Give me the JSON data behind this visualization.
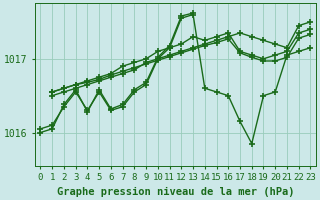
{
  "title": "Graphe pression niveau de la mer (hPa)",
  "bg_color": "#cce8e8",
  "grid_color": "#99ccbb",
  "line_color": "#1a6b1a",
  "ylim": [
    1015.55,
    1017.75
  ],
  "xlim": [
    -0.5,
    23.5
  ],
  "yticks": [
    1016,
    1017
  ],
  "xticks": [
    0,
    1,
    2,
    3,
    4,
    5,
    6,
    7,
    8,
    9,
    10,
    11,
    12,
    13,
    14,
    15,
    16,
    17,
    18,
    19,
    20,
    21,
    22,
    23
  ],
  "series": [
    {
      "x": [
        0,
        1,
        2,
        3,
        4,
        5,
        6,
        7,
        8,
        9,
        10,
        11,
        12,
        13,
        14,
        15,
        16,
        17,
        18,
        19,
        20,
        21,
        22,
        23
      ],
      "y": [
        1016.05,
        1016.1,
        1016.35,
        1016.55,
        1016.3,
        1016.55,
        1016.3,
        1016.35,
        1016.55,
        1016.65,
        1017.0,
        1017.15,
        1017.55,
        1017.6,
        1016.6,
        1016.55,
        1016.5,
        1016.15,
        1015.85,
        1016.5,
        1016.55,
        1017.05,
        1017.1,
        1017.15
      ]
    },
    {
      "x": [
        1,
        2,
        3,
        4,
        5,
        6,
        7,
        8,
        9,
        10,
        11,
        12,
        13,
        14,
        15,
        16,
        17,
        18,
        19,
        20,
        21,
        22,
        23
      ],
      "y": [
        1016.5,
        1016.55,
        1016.6,
        1016.65,
        1016.7,
        1016.75,
        1016.8,
        1016.85,
        1016.95,
        1017.0,
        1017.05,
        1017.1,
        1017.15,
        1017.2,
        1017.25,
        1017.3,
        1017.35,
        1017.3,
        1017.25,
        1017.2,
        1017.15,
        1017.45,
        1017.5
      ]
    },
    {
      "x": [
        1,
        2,
        3,
        4,
        5,
        6,
        7,
        8,
        9,
        10,
        11,
        12,
        13,
        14,
        15,
        16,
        17,
        18,
        19,
        20,
        21,
        22,
        23
      ],
      "y": [
        1016.55,
        1016.6,
        1016.65,
        1016.7,
        1016.75,
        1016.8,
        1016.9,
        1016.95,
        1017.0,
        1017.1,
        1017.15,
        1017.2,
        1017.3,
        1017.25,
        1017.3,
        1017.35,
        1017.1,
        1017.05,
        1017.0,
        1017.05,
        1017.1,
        1017.35,
        1017.4
      ]
    },
    {
      "x": [
        1,
        2,
        3,
        4,
        5,
        6,
        7,
        8,
        9,
        10,
        11,
        12,
        13,
        14,
        15,
        16,
        17,
        18,
        19,
        20,
        21,
        22,
        23
      ],
      "y": [
        1016.55,
        1016.6,
        1016.65,
        1016.68,
        1016.72,
        1016.78,
        1016.83,
        1016.88,
        1016.93,
        1016.98,
        1017.03,
        1017.08,
        1017.13,
        1017.18,
        1017.22,
        1017.27,
        1017.08,
        1017.02,
        1016.97,
        1016.97,
        1017.02,
        1017.28,
        1017.33
      ]
    },
    {
      "x": [
        0,
        1,
        2,
        3,
        4,
        5,
        6,
        7,
        8,
        9,
        10,
        11,
        12,
        13
      ],
      "y": [
        1016.0,
        1016.05,
        1016.38,
        1016.58,
        1016.28,
        1016.58,
        1016.32,
        1016.38,
        1016.58,
        1016.68,
        1017.02,
        1017.18,
        1017.58,
        1017.62
      ]
    }
  ],
  "marker": "+",
  "markersize": 4,
  "markeredgewidth": 1.2,
  "linewidth": 1.0,
  "tick_fontsize": 6.5,
  "xlabel_fontsize": 7.5
}
